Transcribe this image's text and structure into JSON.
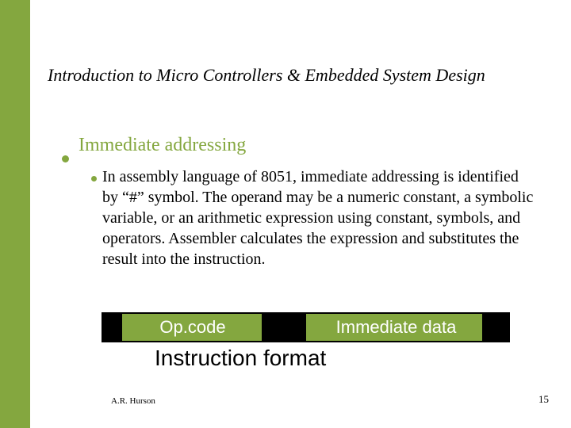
{
  "colors": {
    "accent": "#84a73f",
    "text": "#000000",
    "box_label": "#ffffff",
    "background": "#ffffff"
  },
  "title": "Introduction to Micro Controllers & Embedded System Design",
  "heading": "Immediate addressing",
  "body": "In assembly language of 8051, immediate addressing is identified by “#” symbol.  The operand may be a numeric constant, a symbolic variable, or an arithmetic expression using constant, symbols, and operators. Assembler calculates the expression and substitutes the result into the instruction.",
  "diagram": {
    "left_label": "Op.code",
    "right_label": "Immediate data",
    "caption": "Instruction format"
  },
  "author": "A.R. Hurson",
  "page": "15",
  "typography": {
    "title_fontsize": 22,
    "heading_fontsize": 24,
    "body_fontsize": 20,
    "box_label_fontsize": 22,
    "caption_fontsize": 28,
    "author_fontsize": 11,
    "page_fontsize": 13
  }
}
